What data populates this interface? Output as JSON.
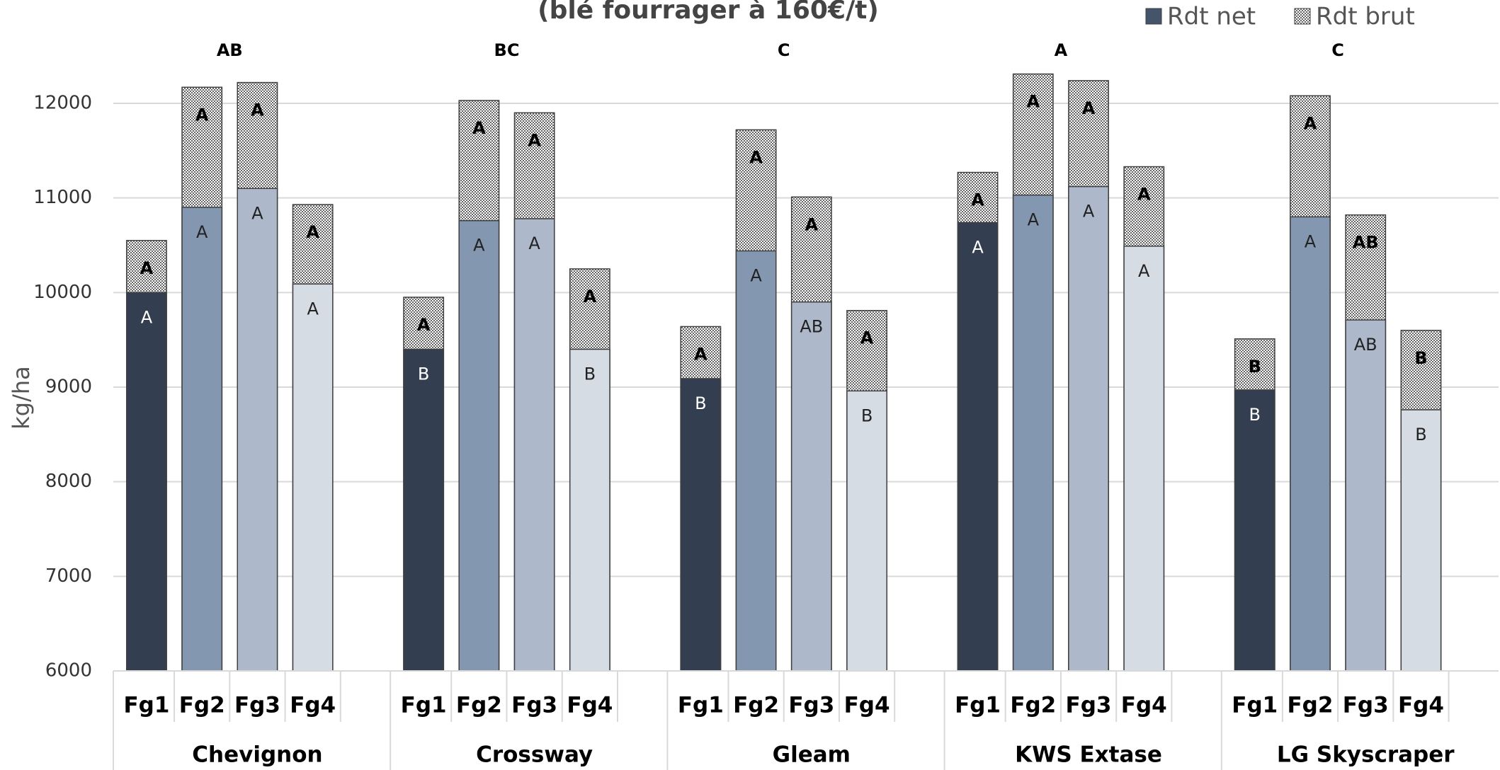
{
  "chart_data": {
    "type": "grouped_overlay_bar",
    "title": "(blé fourrager à 160€/t)",
    "y_label": "kg/ha",
    "groups": [
      "Chevignon",
      "Crossway",
      "Gleam",
      "KWS Extase",
      "LG Skyscraper"
    ],
    "group_labels": [
      "AB",
      "BC",
      "C",
      "A",
      "C"
    ],
    "categories": [
      "Fg1",
      "Fg2",
      "Fg3",
      "Fg4"
    ],
    "series": [
      {
        "name": "Rdt net",
        "color": "#44546a",
        "colors": [
          "#333f50",
          "#8497b0",
          "#adb9ca",
          "#d6dce4"
        ],
        "values": [
          [
            10000,
            10900,
            11100,
            10090
          ],
          [
            9400,
            10760,
            10780,
            9400
          ],
          [
            9090,
            10440,
            9900,
            8960
          ],
          [
            10740,
            11030,
            11120,
            10490
          ],
          [
            8970,
            10800,
            9710,
            8760
          ]
        ],
        "value_labels": [
          [
            "A",
            "A",
            "A",
            "A"
          ],
          [
            "B",
            "A",
            "A",
            "B"
          ],
          [
            "B",
            "A",
            "AB",
            "B"
          ],
          [
            "A",
            "A",
            "A",
            "A"
          ],
          [
            "B",
            "A",
            "AB",
            "B"
          ]
        ]
      },
      {
        "name": "Rdt brut",
        "color": "#a6a6a6",
        "values": [
          [
            10550,
            12170,
            12220,
            10930
          ],
          [
            9950,
            12030,
            11900,
            10250
          ],
          [
            9640,
            11720,
            11010,
            9810
          ],
          [
            11270,
            12310,
            12240,
            11330
          ],
          [
            9510,
            12080,
            10820,
            9600
          ]
        ],
        "value_labels": [
          [
            "A",
            "A",
            "A",
            "A"
          ],
          [
            "A",
            "A",
            "A",
            "A"
          ],
          [
            "A",
            "A",
            "A",
            "A"
          ],
          [
            "A",
            "A",
            "A",
            "A"
          ],
          [
            "B",
            "A",
            "AB",
            "B"
          ]
        ]
      }
    ],
    "ylim": [
      6000,
      12400
    ],
    "yticks": [
      6000,
      7000,
      8000,
      9000,
      10000,
      11000,
      12000
    ],
    "grid": true,
    "legend": "top-right"
  }
}
